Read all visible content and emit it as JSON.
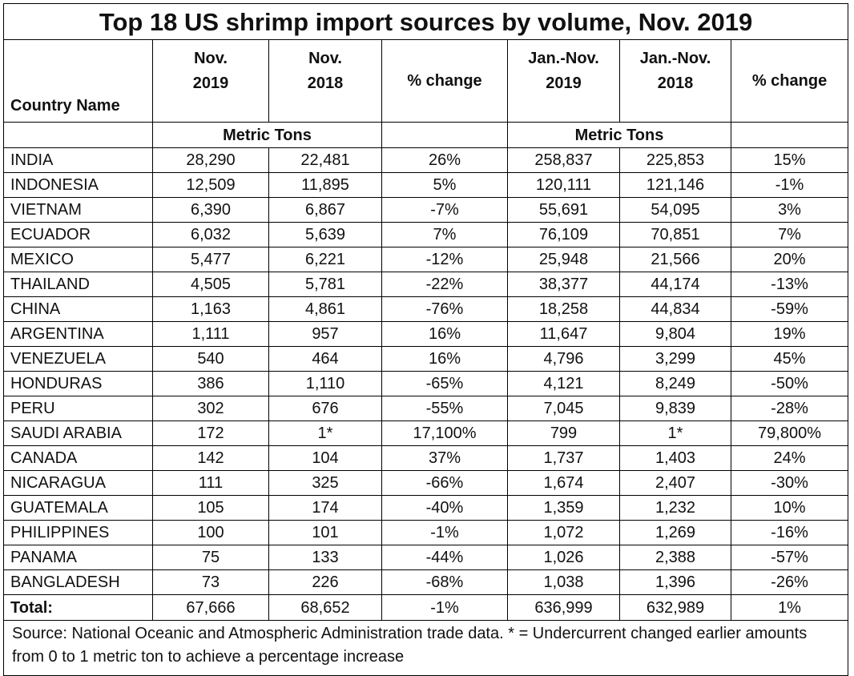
{
  "chart_data": {
    "type": "table",
    "title": "Top 18 US shrimp import sources by volume, Nov. 2019",
    "header": {
      "country": "Country Name",
      "cols": [
        {
          "l1": "Nov.",
          "l2": "2019"
        },
        {
          "l1": "Nov.",
          "l2": "2018"
        },
        {
          "l1": "% change",
          "l2": ""
        },
        {
          "l1": "Jan.-Nov.",
          "l2": "2019"
        },
        {
          "l1": "Jan.-Nov.",
          "l2": "2018"
        },
        {
          "l1": "% change",
          "l2": ""
        }
      ]
    },
    "units_label_1": "Metric Tons",
    "units_label_2": "Metric Tons",
    "rows": [
      [
        "INDIA",
        "28,290",
        "22,481",
        "26%",
        "258,837",
        "225,853",
        "15%"
      ],
      [
        "INDONESIA",
        "12,509",
        "11,895",
        "5%",
        "120,111",
        "121,146",
        "-1%"
      ],
      [
        "VIETNAM",
        "6,390",
        "6,867",
        "-7%",
        "55,691",
        "54,095",
        "3%"
      ],
      [
        "ECUADOR",
        "6,032",
        "5,639",
        "7%",
        "76,109",
        "70,851",
        "7%"
      ],
      [
        "MEXICO",
        "5,477",
        "6,221",
        "-12%",
        "25,948",
        "21,566",
        "20%"
      ],
      [
        "THAILAND",
        "4,505",
        "5,781",
        "-22%",
        "38,377",
        "44,174",
        "-13%"
      ],
      [
        "CHINA",
        "1,163",
        "4,861",
        "-76%",
        "18,258",
        "44,834",
        "-59%"
      ],
      [
        "ARGENTINA",
        "1,111",
        "957",
        "16%",
        "11,647",
        "9,804",
        "19%"
      ],
      [
        "VENEZUELA",
        "540",
        "464",
        "16%",
        "4,796",
        "3,299",
        "45%"
      ],
      [
        "HONDURAS",
        "386",
        "1,110",
        "-65%",
        "4,121",
        "8,249",
        "-50%"
      ],
      [
        "PERU",
        "302",
        "676",
        "-55%",
        "7,045",
        "9,839",
        "-28%"
      ],
      [
        "SAUDI ARABIA",
        "172",
        "1*",
        "17,100%",
        "799",
        "1*",
        "79,800%"
      ],
      [
        "CANADA",
        "142",
        "104",
        "37%",
        "1,737",
        "1,403",
        "24%"
      ],
      [
        "NICARAGUA",
        "111",
        "325",
        "-66%",
        "1,674",
        "2,407",
        "-30%"
      ],
      [
        "GUATEMALA",
        "105",
        "174",
        "-40%",
        "1,359",
        "1,232",
        "10%"
      ],
      [
        "PHILIPPINES",
        "100",
        "101",
        "-1%",
        "1,072",
        "1,269",
        "-16%"
      ],
      [
        "PANAMA",
        "75",
        "133",
        "-44%",
        "1,026",
        "2,388",
        "-57%"
      ],
      [
        "BANGLADESH",
        "73",
        "226",
        "-68%",
        "1,038",
        "1,396",
        "-26%"
      ]
    ],
    "total": [
      "Total:",
      "67,666",
      "68,652",
      "-1%",
      "636,999",
      "632,989",
      "1%"
    ],
    "source": "Source: National Oceanic and Atmospheric Administration trade data. * = Undercurrent changed earlier amounts from 0 to 1 metric ton to achieve a percentage increase"
  }
}
